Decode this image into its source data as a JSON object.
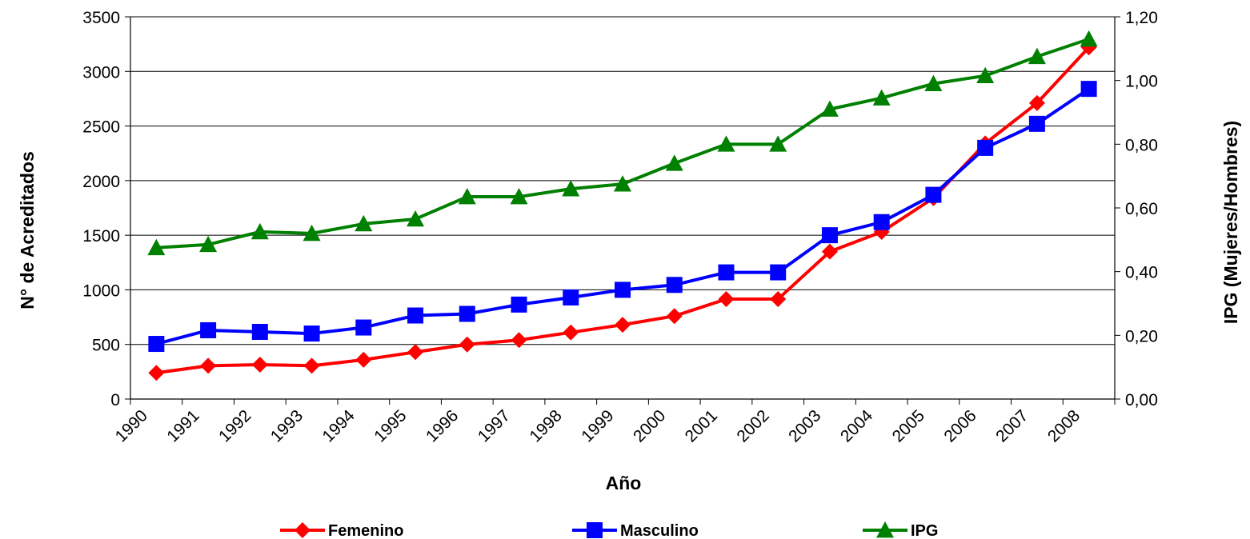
{
  "chart_data": {
    "type": "line",
    "title": "",
    "xlabel": "Año",
    "ylabel": "N° de Acreditados",
    "y2label": "IPG (Mujeres/Hombres)",
    "ylim": [
      0,
      3500
    ],
    "y2lim": [
      0,
      1.2
    ],
    "y_ticks": [
      "0",
      "500",
      "1000",
      "1500",
      "2000",
      "2500",
      "3000",
      "3500"
    ],
    "y2_ticks": [
      "0,00",
      "0,20",
      "0,40",
      "0,60",
      "0,80",
      "1,00",
      "1,20"
    ],
    "grid": true,
    "legend_position": "bottom",
    "categories": [
      "1990",
      "1991",
      "1992",
      "1993",
      "1994",
      "1995",
      "1996",
      "1997",
      "1998",
      "1999",
      "2000",
      "2001",
      "2002",
      "2003",
      "2004",
      "2005",
      "2006",
      "2007",
      "2008"
    ],
    "series": [
      {
        "name": "Femenino",
        "axis": "left",
        "color": "#ff0000",
        "marker": "diamond",
        "values": [
          240,
          305,
          315,
          305,
          360,
          430,
          500,
          540,
          610,
          680,
          760,
          915,
          915,
          1350,
          1530,
          1840,
          2340,
          2710,
          3220
        ]
      },
      {
        "name": "Masculino",
        "axis": "left",
        "color": "#0000ff",
        "marker": "square",
        "values": [
          505,
          630,
          615,
          600,
          655,
          765,
          780,
          865,
          930,
          1000,
          1045,
          1160,
          1160,
          1500,
          1620,
          1870,
          2300,
          2520,
          2840
        ]
      },
      {
        "name": "IPG",
        "axis": "right",
        "color": "#008000",
        "marker": "triangle",
        "values": [
          0.475,
          0.485,
          0.525,
          0.52,
          0.55,
          0.565,
          0.635,
          0.635,
          0.66,
          0.675,
          0.74,
          0.8,
          0.8,
          0.91,
          0.945,
          0.99,
          1.015,
          1.075,
          1.13
        ]
      }
    ]
  }
}
